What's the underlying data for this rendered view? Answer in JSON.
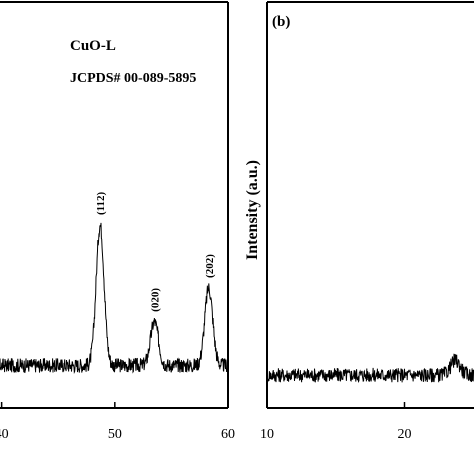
{
  "chart_data": [
    {
      "type": "line",
      "panel_label": "",
      "annotations": [
        "CuO-L",
        "JCPDS# 00-089-5895"
      ],
      "xlabel": "",
      "ylabel": "",
      "xlim": [
        38,
        60
      ],
      "ylim": [
        0,
        100
      ],
      "x_ticks": [
        "40",
        "50",
        "60"
      ],
      "peaks": [
        {
          "x": 48.7,
          "height": 58,
          "label": "(112)"
        },
        {
          "x": 53.5,
          "height": 18,
          "label": "(020)"
        },
        {
          "x": 58.3,
          "height": 32,
          "label": "(202)"
        }
      ],
      "baseline": 11,
      "series": [
        {
          "values": []
        }
      ]
    },
    {
      "type": "line",
      "panel_label": "(b)",
      "annotations": [],
      "xlabel": "",
      "ylabel": "Intensity (a.u.)",
      "xlim": [
        10,
        30
      ],
      "ylim": [
        0,
        100
      ],
      "x_ticks": [
        "10",
        "20"
      ],
      "peaks": [
        {
          "x": 23.7,
          "height": 6,
          "label": ""
        }
      ],
      "baseline": 7,
      "series": [
        {
          "values": []
        }
      ]
    }
  ],
  "colors": {
    "line": "#000000",
    "background": "#ffffff"
  }
}
